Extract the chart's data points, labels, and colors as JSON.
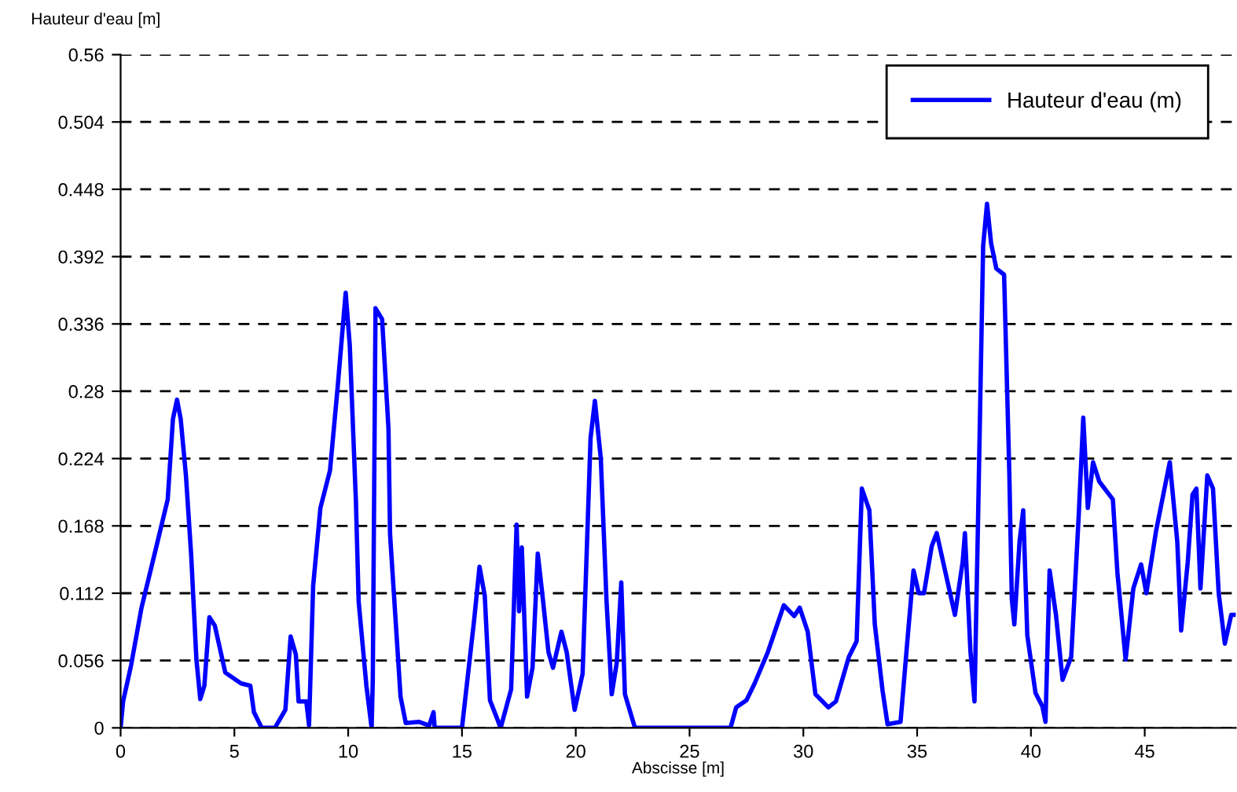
{
  "chart_data": {
    "type": "line",
    "xlabel": "Abscisse [m]",
    "ylabel": "Hauteur d'eau [m]",
    "xlim": [
      0,
      49
    ],
    "ylim": [
      0,
      0.56
    ],
    "xticks": [
      0,
      5,
      10,
      15,
      20,
      25,
      30,
      35,
      40,
      45
    ],
    "yticks": [
      {
        "value": 0,
        "label": "0"
      },
      0.056,
      0.112,
      0.168,
      0.224,
      0.28,
      0.336,
      0.392,
      0.448,
      0.504,
      0.56
    ],
    "grid": "y",
    "legend": "top right",
    "marker": "none",
    "line_style": "solid",
    "series": [
      {
        "name": "Hauteur d'eau (m)",
        "color": "#0000ff",
        "x": [
          0,
          0.11,
          0.46,
          0.92,
          1.6,
          2.07,
          2.3,
          2.48,
          2.64,
          2.87,
          3.1,
          3.33,
          3.5,
          3.68,
          3.9,
          4.14,
          4.6,
          5.29,
          5.7,
          5.86,
          6.2,
          6.78,
          7.24,
          7.47,
          7.7,
          7.82,
          8.16,
          8.28,
          8.46,
          8.78,
          9.2,
          9.54,
          9.89,
          10.07,
          10.34,
          10.46,
          10.8,
          11.03,
          11.08,
          11.2,
          11.49,
          11.77,
          11.84,
          12.3,
          12.53,
          13.1,
          13.56,
          13.75,
          13.8,
          15,
          15.19,
          15.53,
          15.77,
          16.0,
          16.23,
          16.7,
          17.16,
          17.4,
          17.51,
          17.63,
          17.86,
          18.1,
          18.33,
          18.56,
          18.8,
          19.0,
          19.37,
          19.6,
          19.95,
          20.3,
          20.65,
          20.84,
          21.1,
          21.35,
          21.58,
          21.8,
          22.0,
          22.16,
          22.6,
          26.8,
          27.05,
          27.5,
          27.86,
          28.44,
          29.14,
          29.6,
          29.84,
          30.19,
          30.53,
          31.1,
          31.43,
          32.0,
          32.34,
          32.57,
          32.9,
          33.14,
          33.48,
          33.7,
          34.27,
          34.6,
          34.84,
          35.07,
          35.3,
          35.64,
          35.86,
          36.2,
          36.66,
          37.0,
          37.1,
          37.34,
          37.52,
          37.68,
          37.9,
          38.07,
          38.25,
          38.48,
          38.82,
          39.05,
          39.16,
          39.27,
          39.5,
          39.66,
          39.84,
          40.2,
          40.5,
          40.64,
          40.82,
          41.1,
          41.39,
          41.77,
          42.1,
          42.3,
          42.5,
          42.73,
          43.0,
          43.6,
          43.8,
          44.16,
          44.5,
          44.84,
          45.07,
          45.5,
          46.1,
          46.43,
          46.6,
          46.89,
          47.1,
          47.27,
          47.45,
          47.75,
          48.0,
          48.25,
          48.52,
          48.8,
          48.95
        ],
        "values": [
          0,
          0.022,
          0.052,
          0.1,
          0.153,
          0.19,
          0.257,
          0.273,
          0.257,
          0.21,
          0.144,
          0.057,
          0.024,
          0.035,
          0.092,
          0.085,
          0.046,
          0.037,
          0.035,
          0.013,
          0,
          0,
          0.015,
          0.076,
          0.061,
          0.022,
          0.022,
          0.002,
          0.118,
          0.183,
          0.214,
          0.284,
          0.362,
          0.318,
          0.188,
          0.105,
          0.035,
          0,
          0.039,
          0.349,
          0.34,
          0.249,
          0.161,
          0.026,
          0.004,
          0.005,
          0.002,
          0.013,
          0,
          0,
          0.032,
          0.089,
          0.134,
          0.11,
          0.023,
          0,
          0.032,
          0.169,
          0.097,
          0.15,
          0.026,
          0.05,
          0.145,
          0.106,
          0.063,
          0.05,
          0.08,
          0.063,
          0.015,
          0.045,
          0.241,
          0.272,
          0.224,
          0.106,
          0.028,
          0.054,
          0.121,
          0.028,
          0,
          0,
          0.017,
          0.023,
          0.037,
          0.063,
          0.102,
          0.093,
          0.1,
          0.08,
          0.028,
          0.017,
          0.022,
          0.059,
          0.072,
          0.199,
          0.181,
          0.086,
          0.031,
          0.003,
          0.005,
          0.079,
          0.131,
          0.112,
          0.112,
          0.151,
          0.162,
          0.133,
          0.094,
          0.138,
          0.162,
          0.064,
          0.022,
          0.177,
          0.401,
          0.436,
          0.403,
          0.382,
          0.377,
          0.212,
          0.107,
          0.086,
          0.155,
          0.181,
          0.077,
          0.029,
          0.018,
          0.005,
          0.131,
          0.094,
          0.04,
          0.059,
          0.177,
          0.258,
          0.183,
          0.221,
          0.205,
          0.19,
          0.129,
          0.057,
          0.116,
          0.136,
          0.112,
          0.164,
          0.221,
          0.155,
          0.081,
          0.138,
          0.194,
          0.199,
          0.116,
          0.21,
          0.199,
          0.112,
          0.07,
          0.094,
          0.094
        ]
      }
    ]
  }
}
